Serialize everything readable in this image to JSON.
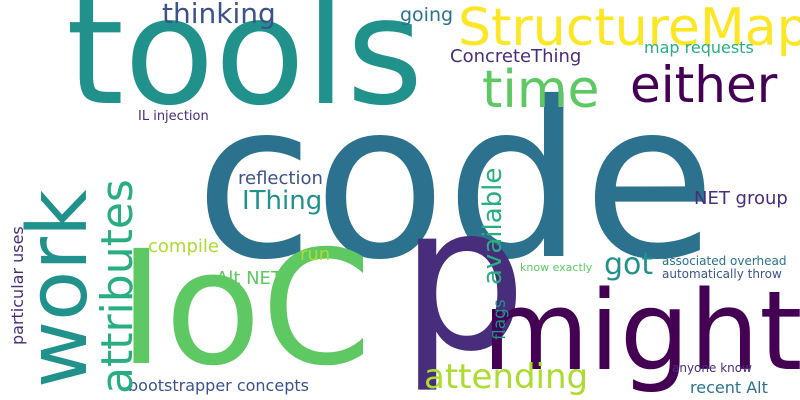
{
  "colors": {
    "background": "#ffffff",
    "viridis_dark": "#440154",
    "viridis_indigo": "#472d7b",
    "viridis_blue": "#3b528b",
    "viridis_steel": "#2c728e",
    "viridis_teal": "#21918c",
    "viridis_green": "#28ae80",
    "viridis_lightgreen": "#5ec962",
    "viridis_lime": "#addc30",
    "viridis_yellow": "#fde725"
  },
  "words": {
    "code": "code",
    "tools": "tools",
    "ioc": "IoC",
    "p": "p",
    "might": "might",
    "work": "work",
    "attributes": "attributes",
    "structuremap": "StructureMap",
    "either": "either",
    "time": "time",
    "thinking": "thinking",
    "going": "going",
    "concretething": "ConcreteThing",
    "map_requests": "map requests",
    "il_injection": "IL injection",
    "reflection": "reflection",
    "ithing": "IThing",
    "available": "available",
    "got": "got",
    "net_group": "NET group",
    "compile": "compile",
    "run": "run",
    "alt_net": "Alt NET",
    "flags": "flags",
    "know_exactly": "know exactly",
    "associated_overhead": "associated overhead",
    "automatically_throw": "automatically throw",
    "particular_uses": "particular uses",
    "attending": "attending",
    "bootstrapper_concepts": "bootstrapper concepts",
    "anyone_know": "anyone know",
    "recent_alt": "recent Alt"
  }
}
